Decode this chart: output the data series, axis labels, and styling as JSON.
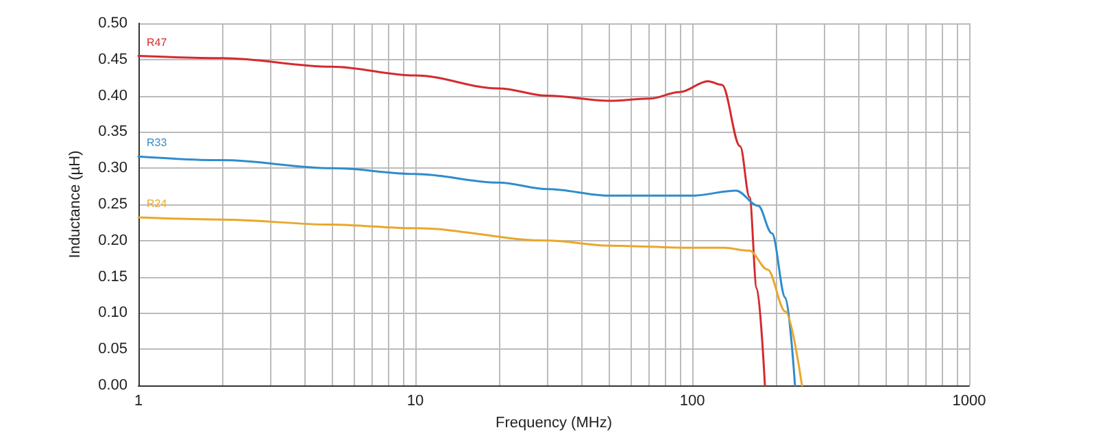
{
  "chart_data": {
    "type": "line",
    "xlabel": "Frequency (MHz)",
    "ylabel": "Inductance (µH)",
    "xlim": [
      1,
      1000
    ],
    "ylim": [
      0,
      0.5
    ],
    "log": "x",
    "grid": true,
    "legend": false,
    "marker": "none",
    "line_style": "solid",
    "xticks": [
      1,
      {
        "value": 2,
        "label": null
      },
      {
        "value": 3,
        "label": null
      },
      {
        "value": 4,
        "label": null
      },
      {
        "value": 5,
        "label": null
      },
      {
        "value": 6,
        "label": null
      },
      {
        "value": 7,
        "label": null
      },
      {
        "value": 8,
        "label": null
      },
      {
        "value": 9,
        "label": null
      },
      10,
      {
        "value": 20,
        "label": null
      },
      {
        "value": 30,
        "label": null
      },
      {
        "value": 40,
        "label": null
      },
      {
        "value": 50,
        "label": null
      },
      {
        "value": 60,
        "label": null
      },
      {
        "value": 70,
        "label": null
      },
      {
        "value": 80,
        "label": null
      },
      {
        "value": 90,
        "label": null
      },
      100,
      {
        "value": 200,
        "label": null
      },
      {
        "value": 300,
        "label": null
      },
      {
        "value": 400,
        "label": null
      },
      {
        "value": 500,
        "label": null
      },
      {
        "value": 600,
        "label": null
      },
      {
        "value": 700,
        "label": null
      },
      {
        "value": 800,
        "label": null
      },
      {
        "value": 900,
        "label": null
      },
      1000
    ],
    "yticks": [
      {
        "value": 0,
        "label": "0.00"
      },
      {
        "value": 0.05,
        "label": "0.05"
      },
      {
        "value": 0.1,
        "label": "0.10"
      },
      {
        "value": 0.15,
        "label": "0.15"
      },
      {
        "value": 0.2,
        "label": "0.20"
      },
      {
        "value": 0.25,
        "label": "0.25"
      },
      {
        "value": 0.3,
        "label": "0.30"
      },
      {
        "value": 0.35,
        "label": "0.35"
      },
      {
        "value": 0.4,
        "label": "0.40"
      },
      {
        "value": 0.45,
        "label": "0.45"
      },
      {
        "value": 0.5,
        "label": "0.50"
      }
    ],
    "series": [
      {
        "name": "R47",
        "color": "#d42a2f",
        "x": [
          1,
          2,
          5,
          10,
          20,
          30,
          50,
          70,
          90,
          114,
          128,
          149,
          161,
          171,
          183
        ],
        "values": [
          0.455,
          0.452,
          0.44,
          0.428,
          0.41,
          0.4,
          0.393,
          0.396,
          0.405,
          0.42,
          0.415,
          0.33,
          0.26,
          0.134,
          0
        ]
      },
      {
        "name": "R33",
        "color": "#2f8ccc",
        "x": [
          1,
          2,
          5,
          10,
          20,
          30,
          50,
          100,
          144,
          173,
          194,
          217,
          235
        ],
        "values": [
          0.316,
          0.311,
          0.3,
          0.292,
          0.28,
          0.271,
          0.262,
          0.262,
          0.269,
          0.248,
          0.21,
          0.121,
          0
        ]
      },
      {
        "name": "R24",
        "color": "#e8a82c",
        "x": [
          1,
          2,
          5,
          10,
          30,
          50,
          100,
          130,
          161,
          187,
          217,
          249
        ],
        "values": [
          0.232,
          0.229,
          0.222,
          0.217,
          0.2,
          0.193,
          0.19,
          0.19,
          0.186,
          0.16,
          0.102,
          0
        ]
      }
    ]
  }
}
